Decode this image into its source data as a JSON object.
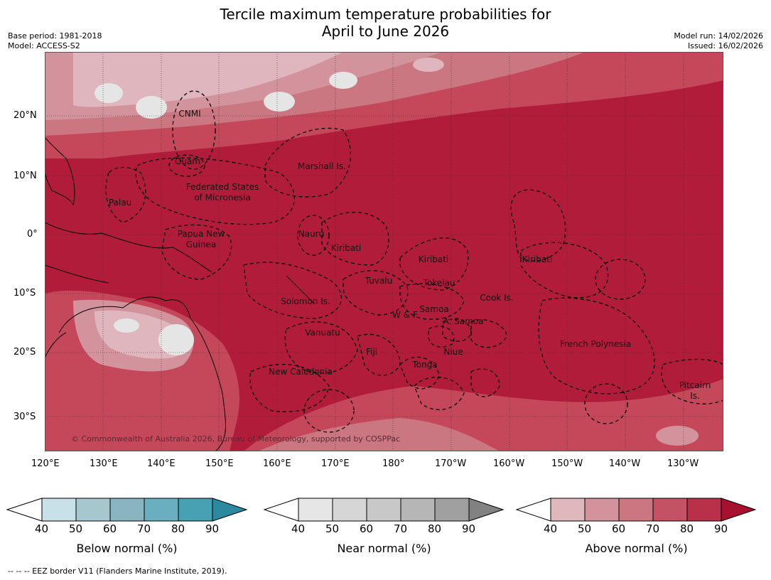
{
  "title_line1": "Tercile maximum temperature probabilities for",
  "title_line2": "April to June 2026",
  "meta_left": [
    "Base period: 1981-2018",
    "Model: ACCESS-S2"
  ],
  "meta_right": [
    "Model run: 14/02/2026",
    "Issued: 16/02/2026"
  ],
  "map": {
    "lat_labels": [
      "20°N",
      "10°N",
      "0°",
      "10°S",
      "20°S",
      "30°S"
    ],
    "lon_labels": [
      "120°E",
      "130°E",
      "140°E",
      "150°E",
      "160°E",
      "170°E",
      "180°",
      "170°W",
      "160°W",
      "150°W",
      "140°W",
      "130°W"
    ],
    "regions": [
      "CNMI",
      "Guam",
      "Marshall Is.",
      "Palau",
      "Federated States",
      "of Micronesia",
      "Papua New",
      "Guinea",
      "Nauru",
      "Kiribati",
      "Kiribati",
      "Kiribati",
      "Tuvalu",
      "Tokelau",
      "Cook Is.",
      "Solomon Is.",
      "W & F",
      "Samoa",
      "A. Samoa",
      "Vanuatu",
      "Fiji",
      "Niue",
      "French Polynesia",
      "Tonga",
      "New Caledonia",
      "Pitcairn",
      "Is."
    ],
    "copyright": "© Commonwealth of Australia 2026, Bureau of Meteorology, supported by COSPPac",
    "colors": {
      "above_dominant": "#b01c3a",
      "ocean_mid": "#c4485a",
      "light": "#dfb6bd",
      "land_neutral": "#e5e5e5"
    }
  },
  "colorbars": [
    {
      "label": "Below normal (%)",
      "ticks": [
        "40",
        "50",
        "60",
        "70",
        "80",
        "90"
      ],
      "colors": [
        "#ffffff",
        "#c8e1e8",
        "#a7c7ce",
        "#89b5c0",
        "#6aafbf",
        "#47a1b3",
        "#2b8aa0"
      ]
    },
    {
      "label": "Near normal (%)",
      "ticks": [
        "40",
        "50",
        "60",
        "70",
        "80",
        "90"
      ],
      "colors": [
        "#ffffff",
        "#e6e6e6",
        "#d6d6d6",
        "#c8c8c8",
        "#b6b6b6",
        "#a0a0a0",
        "#828282"
      ]
    },
    {
      "label": "Above normal (%)",
      "ticks": [
        "40",
        "50",
        "60",
        "70",
        "80",
        "90"
      ],
      "colors": [
        "#ffffff",
        "#dfb8be",
        "#d3939c",
        "#ca7781",
        "#c25264",
        "#b93149",
        "#a8102f"
      ]
    }
  ],
  "footnote": "--  --  -- EEZ border V11 (Flanders Marine Institute, 2019)."
}
